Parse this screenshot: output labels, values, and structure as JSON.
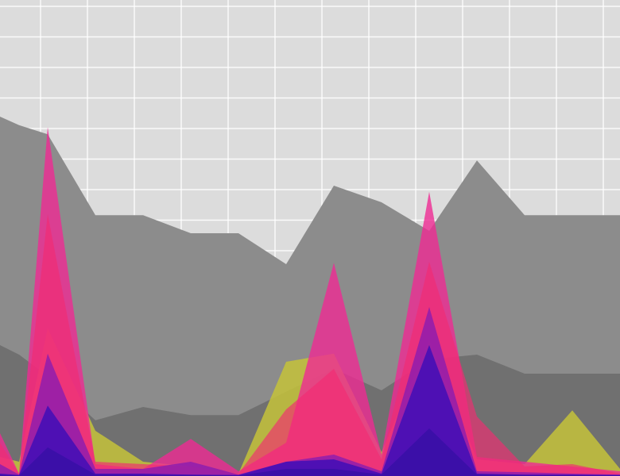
{
  "chart_data": {
    "type": "area",
    "title": "",
    "xlabel": "",
    "ylabel": "",
    "grid": true,
    "legend": "none",
    "x": [
      0,
      0.4,
      1,
      2,
      3,
      4,
      5,
      6,
      7,
      8,
      9,
      10,
      11,
      12,
      13
    ],
    "ylim": [
      0,
      100
    ],
    "background": "#dcdcdc",
    "grid_color": "#ffffff",
    "series": [
      {
        "color": "#8c8c8c",
        "opacity": 1.0,
        "values": [
          75.5,
          73.7,
          71.8,
          54.8,
          54.8,
          51.0,
          51.0,
          44.5,
          61.0,
          57.5,
          51.5,
          66.3,
          54.8,
          54.8,
          54.8
        ]
      },
      {
        "color": "#707070",
        "opacity": 1.0,
        "values": [
          27.5,
          25.5,
          21.0,
          11.7,
          14.5,
          12.8,
          12.8,
          17.7,
          22.5,
          18.0,
          24.5,
          25.5,
          21.5,
          21.5,
          21.5
        ]
      },
      {
        "color": "#c4c23a",
        "opacity": 0.85,
        "values": [
          4.0,
          3.0,
          31.0,
          9.5,
          3.0,
          2.0,
          0.5,
          24.0,
          25.7,
          5.0,
          28.5,
          3.5,
          2.5,
          13.8,
          1.5
        ]
      },
      {
        "color": "#ef2a94",
        "opacity": 0.8,
        "values": [
          9.0,
          0.5,
          73.3,
          2.5,
          1.5,
          7.8,
          1.0,
          7.0,
          44.8,
          4.5,
          59.7,
          4.0,
          3.0,
          2.0,
          1.0
        ]
      },
      {
        "color": "#f22b72",
        "opacity": 0.65,
        "values": [
          7.0,
          0.5,
          55.0,
          3.0,
          2.5,
          2.0,
          0.5,
          14.0,
          22.5,
          3.5,
          45.0,
          12.5,
          2.0,
          2.5,
          0.5
        ]
      },
      {
        "color": "#8a1cb0",
        "opacity": 0.8,
        "values": [
          2.5,
          0.3,
          25.7,
          1.5,
          1.5,
          3.0,
          0.3,
          3.0,
          4.5,
          1.0,
          35.5,
          1.0,
          0.8,
          0.5,
          0.3
        ]
      },
      {
        "color": "#4a10b4",
        "opacity": 0.95,
        "values": [
          0.5,
          0.2,
          14.8,
          0.5,
          0.5,
          0.3,
          0.2,
          3.0,
          3.5,
          0.5,
          27.5,
          0.5,
          0.3,
          0.3,
          0.2
        ]
      },
      {
        "color": "#3b0fa8",
        "opacity": 1.0,
        "values": [
          0.3,
          0.1,
          6.0,
          0.3,
          0.2,
          0.2,
          0.1,
          1.5,
          1.5,
          0.3,
          10.0,
          0.3,
          0.2,
          0.2,
          0.1
        ]
      }
    ]
  }
}
